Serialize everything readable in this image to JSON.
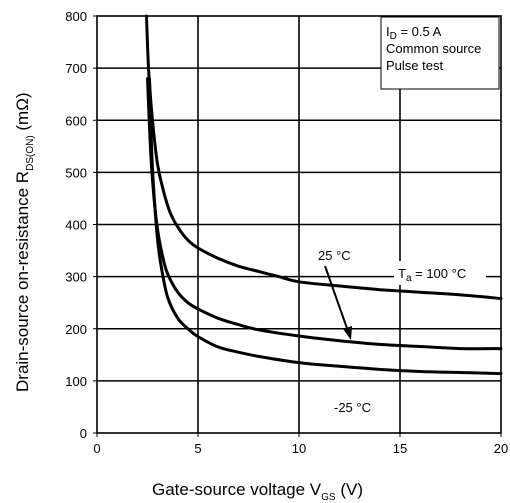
{
  "chart_data": {
    "type": "line",
    "xlabel": {
      "main": "Gate-source  voltage  V",
      "sub": "GS",
      "unit": "  (V)"
    },
    "ylabel": {
      "main": "Drain-source  on-resistance  R",
      "sub": "DS(ON)",
      "unit": "  (mΩ)"
    },
    "xlim": [
      0,
      20
    ],
    "ylim": [
      0,
      800
    ],
    "xticks": [
      0,
      5,
      10,
      15,
      20
    ],
    "xtick_labels": [
      "0",
      "5",
      "10",
      "15",
      "20"
    ],
    "yticks": [
      0,
      100,
      200,
      300,
      400,
      500,
      600,
      700,
      800
    ],
    "ytick_labels": [
      "0",
      "100",
      "200",
      "300",
      "400",
      "500",
      "600",
      "700",
      "800"
    ],
    "grid": true,
    "conditions": [
      {
        "main": "I",
        "sub": "D",
        "rest": " = 0.5 A"
      },
      {
        "main": "Common source",
        "sub": "",
        "rest": ""
      },
      {
        "main": "Pulse test",
        "sub": "",
        "rest": ""
      }
    ],
    "series": [
      {
        "name": "T_a = 100 °C",
        "x": [
          2.45,
          2.55,
          2.7,
          2.85,
          3.0,
          3.25,
          3.6,
          4.0,
          4.5,
          5.0,
          6.0,
          7.0,
          8.0,
          9.0,
          10.0,
          12.0,
          14.0,
          16.0,
          18.0,
          20.0
        ],
        "y": [
          800,
          700,
          620,
          560,
          515,
          470,
          425,
          395,
          370,
          355,
          335,
          320,
          310,
          300,
          290,
          282,
          275,
          270,
          265,
          258
        ]
      },
      {
        "name": "25 °C",
        "x": [
          2.5,
          2.65,
          2.8,
          3.0,
          3.25,
          3.5,
          4.0,
          4.5,
          5.0,
          6.0,
          7.0,
          8.0,
          10.0,
          12.0,
          14.0,
          16.0,
          18.0,
          20.0
        ],
        "y": [
          680,
          545,
          460,
          390,
          338,
          305,
          270,
          250,
          238,
          220,
          208,
          198,
          186,
          177,
          170,
          166,
          162,
          162
        ]
      },
      {
        "name": "-25 °C",
        "x": [
          2.6,
          2.7,
          2.8,
          3.0,
          3.2,
          3.5,
          4.0,
          4.5,
          5.0,
          6.0,
          7.0,
          8.0,
          10.0,
          12.0,
          14.0,
          16.0,
          18.0,
          20.0
        ],
        "y": [
          680,
          550,
          470,
          370,
          315,
          260,
          220,
          200,
          185,
          165,
          155,
          147,
          135,
          128,
          122,
          118,
          116,
          114
        ]
      }
    ],
    "annotations": {
      "label_100": {
        "main": "T",
        "sub": "a",
        "rest": " = 100 °C"
      },
      "label_25": "25 °C",
      "label_m25": "-25 °C"
    }
  }
}
